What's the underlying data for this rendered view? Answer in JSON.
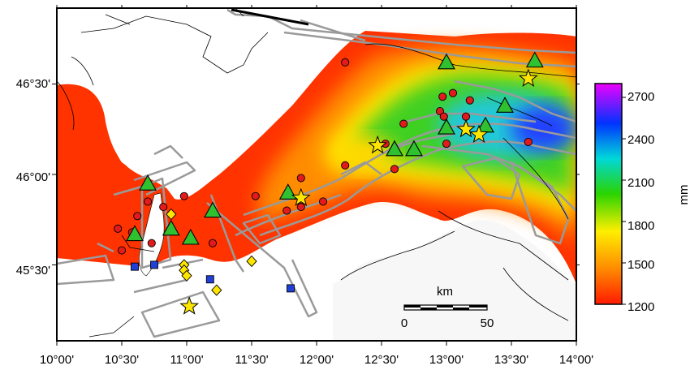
{
  "map": {
    "lon_ticks": [
      "10°00'",
      "10°30'",
      "11°00'",
      "11°30'",
      "12°00'",
      "12°30'",
      "13°00'",
      "13°30'",
      "14°00'"
    ],
    "lat_ticks": [
      "46°30'",
      "46°00'",
      "45°30'"
    ],
    "lon_range": [
      10.0,
      14.0
    ],
    "lat_range": [
      45.08,
      46.92
    ],
    "scale_bar": {
      "unit": "km",
      "start": "0",
      "end": "50"
    }
  },
  "colorbar": {
    "unit": "mm",
    "ticks": [
      "2700",
      "2400",
      "2100",
      "1800",
      "1500",
      "1200"
    ],
    "range": [
      1200,
      2800
    ],
    "colors": [
      "#ff1a00",
      "#ff8a00",
      "#ffee00",
      "#2ad400",
      "#00d8d8",
      "#0033ff",
      "#ee00ff"
    ]
  },
  "symbols": {
    "circle_color": "#e31a1c",
    "triangle_color": "#2fc12f",
    "star_color": "#ffe600",
    "diamond_color": "#ffe600",
    "square_color": "#1f3fd6",
    "circles": [
      [
        12.22,
        46.62
      ],
      [
        12.67,
        46.28
      ],
      [
        12.95,
        46.35
      ],
      [
        12.97,
        46.43
      ],
      [
        13.05,
        46.45
      ],
      [
        13.18,
        46.41
      ],
      [
        12.98,
        46.32
      ],
      [
        13.15,
        46.32
      ],
      [
        12.53,
        46.17
      ],
      [
        13.0,
        46.17
      ],
      [
        13.63,
        46.18
      ],
      [
        12.22,
        46.05
      ],
      [
        12.6,
        46.03
      ],
      [
        11.88,
        45.98
      ],
      [
        11.88,
        45.82
      ],
      [
        12.05,
        45.85
      ],
      [
        11.77,
        45.8
      ],
      [
        11.53,
        45.88
      ],
      [
        10.7,
        45.85
      ],
      [
        10.62,
        45.77
      ],
      [
        10.82,
        45.82
      ],
      [
        10.58,
        45.68
      ],
      [
        10.47,
        45.7
      ],
      [
        10.98,
        45.88
      ],
      [
        10.73,
        45.62
      ],
      [
        10.5,
        45.58
      ],
      [
        11.2,
        45.62
      ]
    ],
    "triangles": [
      [
        13.0,
        46.62
      ],
      [
        13.68,
        46.63
      ],
      [
        13.45,
        46.38
      ],
      [
        13.3,
        46.27
      ],
      [
        13.0,
        46.26
      ],
      [
        12.75,
        46.14
      ],
      [
        12.6,
        46.14
      ],
      [
        10.7,
        45.95
      ],
      [
        11.78,
        45.9
      ],
      [
        11.2,
        45.8
      ],
      [
        10.88,
        45.7
      ],
      [
        11.03,
        45.65
      ],
      [
        10.6,
        45.67
      ]
    ],
    "stars": [
      [
        13.63,
        46.53
      ],
      [
        13.15,
        46.25
      ],
      [
        13.25,
        46.22
      ],
      [
        12.47,
        46.16
      ],
      [
        11.88,
        45.87
      ],
      [
        11.02,
        45.27
      ]
    ],
    "diamonds": [
      [
        10.88,
        45.78
      ],
      [
        10.98,
        45.5
      ],
      [
        10.98,
        45.47
      ],
      [
        11.0,
        45.44
      ],
      [
        11.5,
        45.52
      ],
      [
        11.23,
        45.36
      ]
    ],
    "squares": [
      [
        10.6,
        45.49
      ],
      [
        10.75,
        45.5
      ],
      [
        11.18,
        45.42
      ],
      [
        11.8,
        45.37
      ]
    ]
  }
}
